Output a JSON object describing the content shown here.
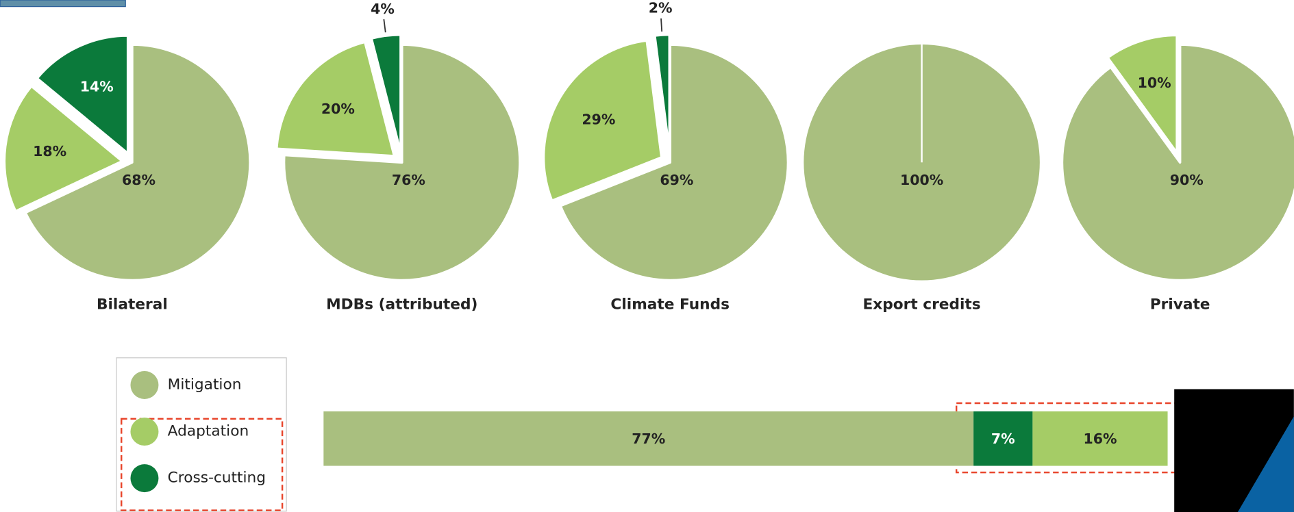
{
  "chart_data": [
    {
      "type": "pie",
      "title": "Bilateral",
      "categories": [
        "Mitigation",
        "Adaptation",
        "Cross-cutting"
      ],
      "colors": [
        "#a9bf7f",
        "#a5cc66",
        "#0b7a3b"
      ],
      "values": [
        68,
        18,
        14
      ],
      "value_labels": [
        "68%",
        "18%",
        "14%"
      ]
    },
    {
      "type": "pie",
      "title": "MDBs (attributed)",
      "categories": [
        "Mitigation",
        "Adaptation",
        "Cross-cutting"
      ],
      "colors": [
        "#a9bf7f",
        "#a5cc66",
        "#0b7a3b"
      ],
      "values": [
        76,
        20,
        4
      ],
      "value_labels": [
        "76%",
        "20%",
        "4%"
      ]
    },
    {
      "type": "pie",
      "title": "Climate Funds",
      "categories": [
        "Mitigation",
        "Adaptation",
        "Cross-cutting"
      ],
      "colors": [
        "#a9bf7f",
        "#a5cc66",
        "#0b7a3b"
      ],
      "values": [
        69,
        29,
        2
      ],
      "value_labels": [
        "69%",
        "29%",
        "2%"
      ]
    },
    {
      "type": "pie",
      "title": "Export credits",
      "categories": [
        "Mitigation"
      ],
      "colors": [
        "#a9bf7f"
      ],
      "values": [
        100
      ],
      "value_labels": [
        "100%"
      ]
    },
    {
      "type": "pie",
      "title": "Private",
      "categories": [
        "Mitigation",
        "Adaptation"
      ],
      "colors": [
        "#a9bf7f",
        "#a5cc66"
      ],
      "values": [
        90,
        10
      ],
      "value_labels": [
        "90%",
        "10%"
      ]
    },
    {
      "type": "bar",
      "orientation": "horizontal",
      "stacked": true,
      "xlim": [
        0,
        100
      ],
      "series": [
        {
          "color": "#a9bf7f",
          "values": [
            77
          ],
          "value_labels": [
            "77%"
          ]
        },
        {
          "color": "#0b7a3b",
          "values": [
            7
          ],
          "value_labels": [
            "7%"
          ]
        },
        {
          "color": "#a5cc66",
          "values": [
            16
          ],
          "value_labels": [
            "16%"
          ]
        }
      ]
    }
  ]
}
